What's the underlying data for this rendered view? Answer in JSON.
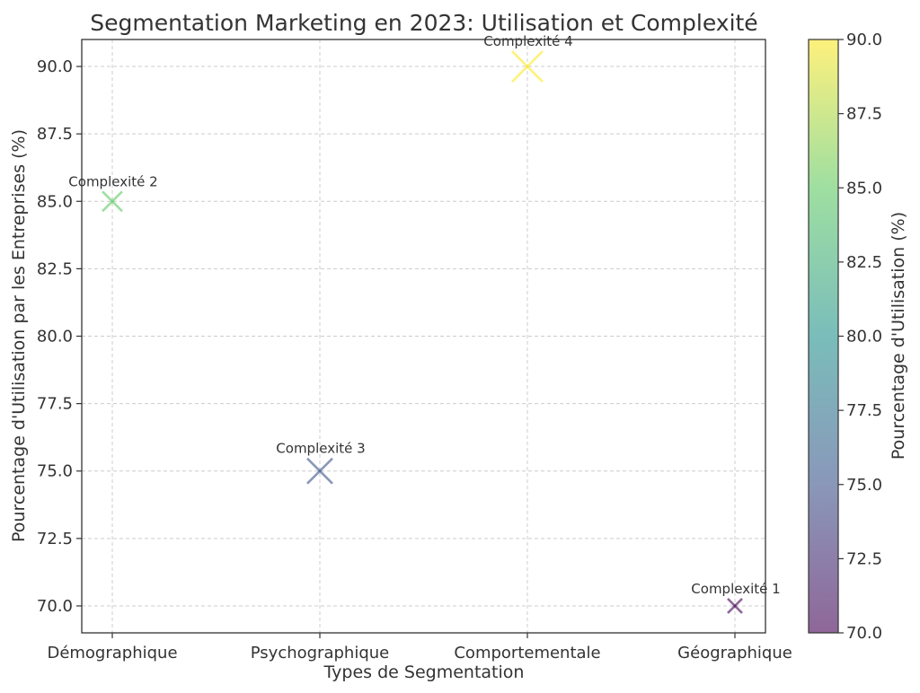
{
  "chart_data": {
    "type": "scatter",
    "title": "Segmentation Marketing en 2023: Utilisation et Complexité",
    "xlabel": "Types de Segmentation",
    "ylabel": "Pourcentage d'Utilisation par les Entreprises (%)",
    "categories": [
      "Démographique",
      "Psychographique",
      "Comportementale",
      "Géographique"
    ],
    "values": [
      85,
      75,
      90,
      70
    ],
    "complexity": [
      2,
      3,
      4,
      1
    ],
    "annotations": [
      "Complexité 2",
      "Complexité 3",
      "Complexité 4",
      "Complexité 1"
    ],
    "marker": "x",
    "ylim": [
      69,
      91
    ],
    "yticks": [
      "70.0",
      "72.5",
      "75.0",
      "77.5",
      "80.0",
      "82.5",
      "85.0",
      "87.5",
      "90.0"
    ],
    "grid": true,
    "colorbar": {
      "label": "Pourcentage d'Utilisation (%)",
      "range": [
        70,
        90
      ],
      "ticks": [
        "70.0",
        "72.5",
        "75.0",
        "77.5",
        "80.0",
        "82.5",
        "85.0",
        "87.5",
        "90.0"
      ],
      "colormap": [
        "#440154",
        "#3b528b",
        "#21918c",
        "#5ec962",
        "#fde725"
      ],
      "alpha": 0.6
    }
  }
}
